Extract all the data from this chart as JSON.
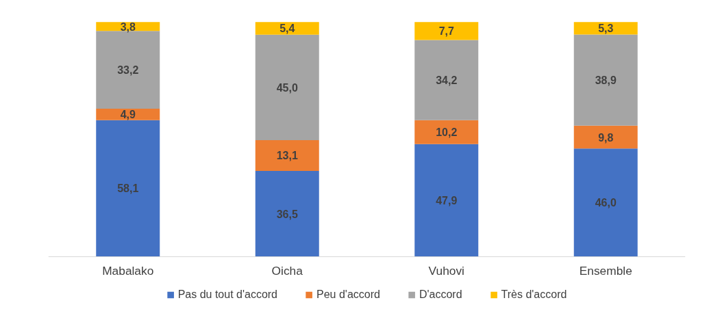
{
  "chart_data": {
    "type": "bar",
    "stacked": true,
    "categories": [
      "Mabalako",
      "Oicha",
      "Vuhovi",
      "Ensemble"
    ],
    "series": [
      {
        "name": "Pas du tout d'accord",
        "color": "#4472c4",
        "values": [
          58.1,
          36.5,
          47.9,
          46.0
        ],
        "value_labels": [
          "58,1",
          "36,5",
          "47,9",
          "46,0"
        ]
      },
      {
        "name": "Peu d'accord",
        "color": "#ed7d31",
        "values": [
          4.9,
          13.1,
          10.2,
          9.8
        ],
        "value_labels": [
          "4,9",
          "13,1",
          "10,2",
          "9,8"
        ]
      },
      {
        "name": "D'accord",
        "color": "#a5a5a5",
        "values": [
          33.2,
          45.0,
          34.2,
          38.9
        ],
        "value_labels": [
          "33,2",
          "45,0",
          "34,2",
          "38,9"
        ]
      },
      {
        "name": "Très d'accord",
        "color": "#ffc000",
        "values": [
          3.8,
          5.4,
          7.7,
          5.3
        ],
        "value_labels": [
          "3,8",
          "5,4",
          "7,7",
          "5,3"
        ]
      }
    ],
    "legend": "bottom"
  }
}
